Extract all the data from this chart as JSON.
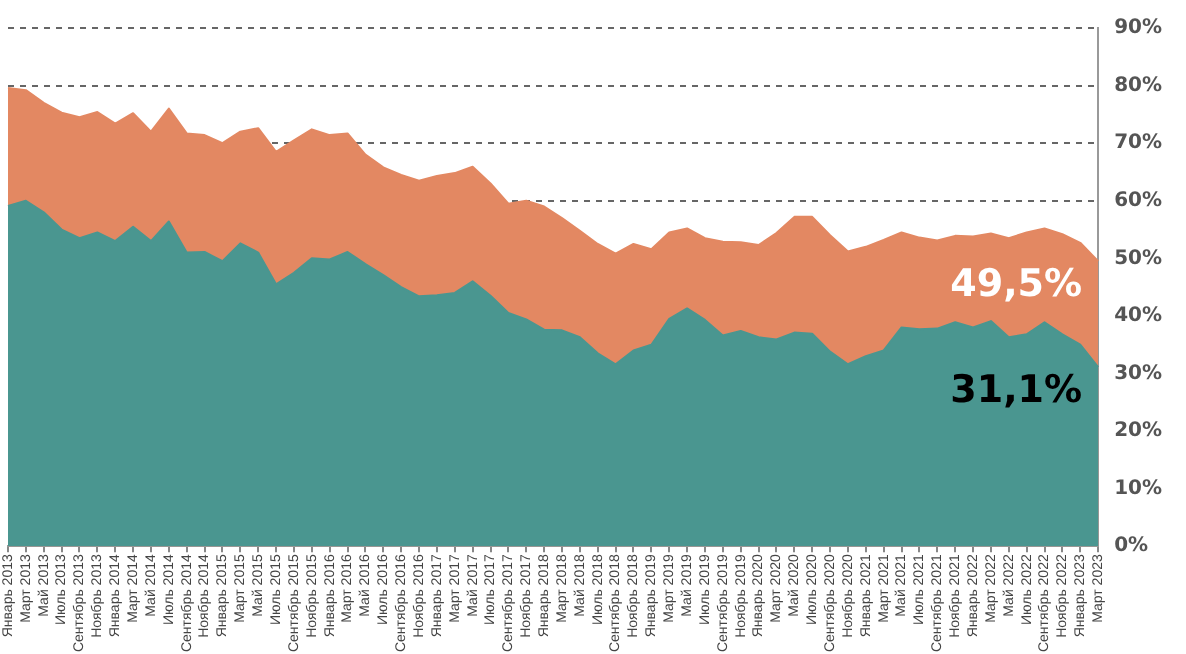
{
  "chart_data": {
    "type": "area",
    "categories": [
      "Январь 2013",
      "Март 2013",
      "Май 2013",
      "Июль 2013",
      "Сентябрь 2013",
      "Ноябрь 2013",
      "Январь 2014",
      "Март 2014",
      "Май 2014",
      "Июль 2014",
      "Сентябрь 2014",
      "Ноябрь 2014",
      "Январь 2015",
      "Март 2015",
      "Май 2015",
      "Июль 2015",
      "Сентябрь 2015",
      "Ноябрь 2015",
      "Январь 2016",
      "Март 2016",
      "Май 2016",
      "Июль 2016",
      "Сентябрь 2016",
      "Ноябрь 2016",
      "Январь 2017",
      "Март 2017",
      "Май 2017",
      "Июль 2017",
      "Сентябрь 2017",
      "Ноябрь 2017",
      "Январь 2018",
      "Март 2018",
      "Май 2018",
      "Июль 2018",
      "Сентябрь 2018",
      "Ноябрь 2018",
      "Январь 2019",
      "Март 2019",
      "Май 2019",
      "Июль 2019",
      "Сентябрь 2019",
      "Ноябрь 2019",
      "Январь 2020",
      "Март 2020",
      "Май 2020",
      "Июль 2020",
      "Сентябрь 2020",
      "Ноябрь 2020",
      "Январь 2021",
      "Март 2021",
      "Май 2021",
      "Июль 2021",
      "Сентябрь 2021",
      "Ноябрь 2021",
      "Январь 2022",
      "Март 2022",
      "Май 2022",
      "Июль 2022",
      "Сентябрь 2022",
      "Ноябрь 2022",
      "Январь 2023",
      "Март 2023"
    ],
    "series": [
      {
        "color": "#e38862",
        "values": [
          79.6,
          79.2,
          77,
          75.3,
          74.5,
          75.4,
          73.4,
          75.2,
          72,
          76,
          71.7,
          71.4,
          70,
          72,
          72.6,
          68.5,
          70.5,
          72.4,
          71.4,
          71.7,
          68,
          65.8,
          64.5,
          63.5,
          64.3,
          64.8,
          65.9,
          63,
          59.5,
          60,
          59,
          57,
          54.8,
          52.5,
          50.8,
          52.5,
          51.6,
          54.5,
          55.2,
          53.5,
          52.9,
          52.8,
          52.3,
          54.4,
          57.2,
          57.2,
          54,
          51.2,
          52,
          53.2,
          54.5,
          53.6,
          53.1,
          53.9,
          53.8,
          54.3,
          53.5,
          54.5,
          55.2,
          54.2,
          52.7,
          49.5
        ]
      },
      {
        "color": "#4a9690",
        "values": [
          59.1,
          60,
          58,
          55,
          53.5,
          54.5,
          53,
          55.5,
          53,
          56.4,
          51,
          51.1,
          49.5,
          52.6,
          51,
          45.5,
          47.5,
          50,
          49.8,
          51.1,
          49,
          47.1,
          45,
          43.4,
          43.6,
          44,
          46,
          43.5,
          40.5,
          39.4,
          37.6,
          37.5,
          36.3,
          33.5,
          31.6,
          34,
          35,
          39.5,
          41.3,
          39.3,
          36.6,
          37.4,
          36.3,
          35.9,
          37.1,
          36.9,
          33.8,
          31.6,
          33,
          34,
          38,
          37.7,
          37.8,
          38.9,
          38,
          39.1,
          36.3,
          36.8,
          38.9,
          36.8,
          35,
          31.1
        ]
      }
    ],
    "ylim": [
      0,
      90
    ],
    "yticks": [
      {
        "value": 0,
        "label": "0%"
      },
      {
        "value": 10,
        "label": "10%"
      },
      {
        "value": 20,
        "label": "20%"
      },
      {
        "value": 30,
        "label": "30%"
      },
      {
        "value": 40,
        "label": "40%"
      },
      {
        "value": 50,
        "label": "50%"
      },
      {
        "value": 60,
        "label": "60%"
      },
      {
        "value": 70,
        "label": "70%"
      },
      {
        "value": 80,
        "label": "80%"
      },
      {
        "value": 90,
        "label": "90%"
      }
    ],
    "grid": "y",
    "line_style": "dashed",
    "annotations": [
      {
        "text": "49,5%",
        "x": "Март 2023",
        "y": 49.5
      },
      {
        "text": "31,1%",
        "x": "Март 2023",
        "y": 31.1
      }
    ]
  }
}
